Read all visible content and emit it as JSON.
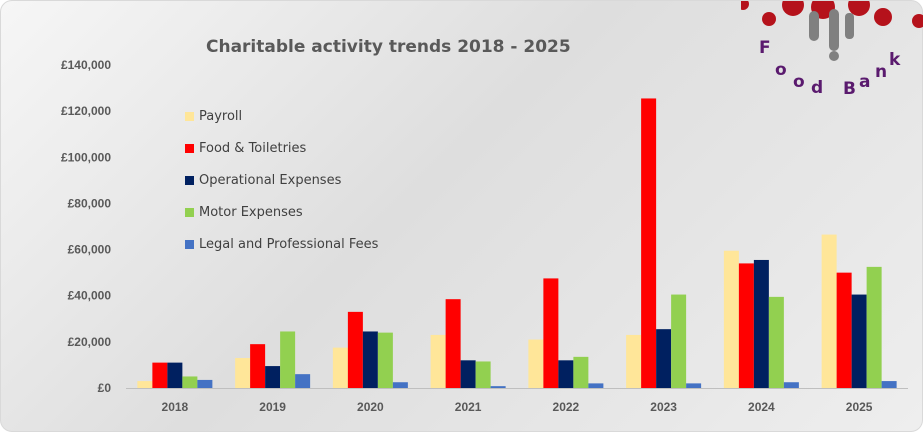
{
  "chart_data": {
    "type": "bar",
    "title": "Charitable activity trends 2018 - 2025",
    "categories": [
      "2018",
      "2019",
      "2020",
      "2021",
      "2022",
      "2023",
      "2024",
      "2025"
    ],
    "ylim": [
      0,
      140000
    ],
    "yticks": [
      {
        "value": 0,
        "label": "£0"
      },
      {
        "value": 20000,
        "label": "£20,000"
      },
      {
        "value": 40000,
        "label": "£40,000"
      },
      {
        "value": 60000,
        "label": "£60,000"
      },
      {
        "value": 80000,
        "label": "£80,000"
      },
      {
        "value": 100000,
        "label": "£100,000"
      },
      {
        "value": 120000,
        "label": "£120,000"
      },
      {
        "value": 140000,
        "label": "£140,000"
      }
    ],
    "legend_position": "top-left",
    "grid": false,
    "series": [
      {
        "name": "Payroll",
        "color": "#FFE699",
        "values": [
          3000,
          13000,
          17500,
          23000,
          21000,
          23000,
          59500,
          66500
        ]
      },
      {
        "name": "Food & Toiletries",
        "color": "#FF0000",
        "values": [
          11000,
          19000,
          33000,
          38500,
          47500,
          125500,
          54000,
          50000
        ]
      },
      {
        "name": "Operational Expenses",
        "color": "#002060",
        "values": [
          11000,
          9500,
          24500,
          12000,
          12000,
          25500,
          55500,
          40500
        ]
      },
      {
        "name": "Motor Expenses",
        "color": "#92D050",
        "values": [
          5000,
          24500,
          24000,
          11500,
          13500,
          40500,
          39500,
          52500
        ]
      },
      {
        "name": "Legal and Professional Fees",
        "color": "#4472C4",
        "values": [
          3500,
          6000,
          2500,
          800,
          2000,
          2000,
          2500,
          3000
        ]
      }
    ]
  },
  "logo": {
    "text": "Food Bank",
    "primary_color": "#B5121B",
    "secondary_color": "#808080"
  }
}
